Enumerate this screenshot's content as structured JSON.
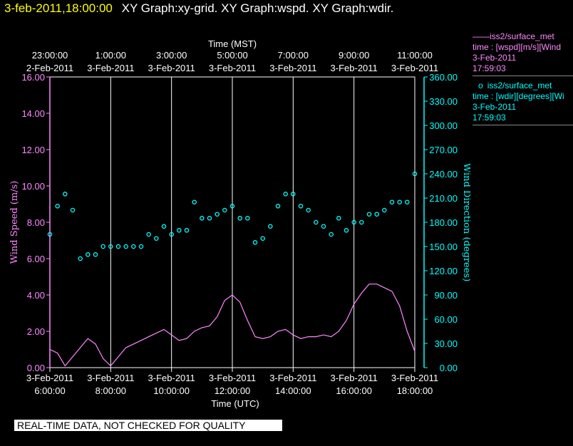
{
  "header": {
    "date": "3-feb-2011,18:00:00",
    "graphs": "XY Graph:xy-grid.  XY Graph:wspd.  XY Graph:wdir."
  },
  "legend": [
    {
      "dataset": "iss2/surface_met",
      "variable": "time : [wspd][m/s][Wind",
      "date": "3-Feb-2011",
      "time": "17:59:03",
      "color": "#ff88ff",
      "marker": "line"
    },
    {
      "dataset": "iss2/surface_met",
      "variable": "time : [wdir][degrees][Wi",
      "date": "3-Feb-2011",
      "time": "17:59:03",
      "color": "#00ffff",
      "marker": "circle"
    }
  ],
  "qc_note": "REAL-TIME DATA, NOT CHECKED FOR QUALITY",
  "chart_data": {
    "type": "line",
    "top_axis": {
      "label": "Time (MST)",
      "ticks": [
        {
          "time": "23:00:00",
          "date": "2-Feb-2011"
        },
        {
          "time": "1:00:00",
          "date": "3-Feb-2011"
        },
        {
          "time": "3:00:00",
          "date": "3-Feb-2011"
        },
        {
          "time": "5:00:00",
          "date": "3-Feb-2011"
        },
        {
          "time": "7:00:00",
          "date": "3-Feb-2011"
        },
        {
          "time": "9:00:00",
          "date": "3-Feb-2011"
        },
        {
          "time": "11:00:00",
          "date": "3-Feb-2011"
        }
      ]
    },
    "x_axis": {
      "label": "Time (UTC)",
      "range": [
        "3-Feb-2011 6:00:00",
        "3-Feb-2011 18:00:00"
      ],
      "ticks": [
        {
          "time": "6:00:00",
          "date": "3-Feb-2011"
        },
        {
          "time": "8:00:00",
          "date": "3-Feb-2011"
        },
        {
          "time": "10:00:00",
          "date": "3-Feb-2011"
        },
        {
          "time": "12:00:00",
          "date": "3-Feb-2011"
        },
        {
          "time": "14:00:00",
          "date": "3-Feb-2011"
        },
        {
          "time": "16:00:00",
          "date": "3-Feb-2011"
        },
        {
          "time": "18:00:00",
          "date": "3-Feb-2011"
        }
      ]
    },
    "y_left": {
      "label": "Wind Speed (m/s)",
      "range": [
        0,
        16
      ],
      "ticks": [
        "0.00",
        "2.00",
        "4.00",
        "6.00",
        "8.00",
        "10.00",
        "12.00",
        "14.00",
        "16.00"
      ],
      "color": "#ff88ff"
    },
    "y_right": {
      "label": "Wind Direction (degrees)",
      "range": [
        0,
        360
      ],
      "ticks": [
        "0.00",
        "30.00",
        "60.00",
        "90.00",
        "120.00",
        "150.00",
        "180.00",
        "210.00",
        "240.00",
        "270.00",
        "300.00",
        "330.00",
        "360.00"
      ],
      "color": "#00ffff"
    },
    "grid": "vertical lines at top-axis ticks",
    "series": [
      {
        "name": "wspd",
        "axis": "left",
        "style": "line",
        "color": "#ff88ff",
        "x": [
          "6:00",
          "6:15",
          "6:30",
          "6:45",
          "7:00",
          "7:15",
          "7:30",
          "7:45",
          "8:00",
          "8:15",
          "8:30",
          "8:45",
          "9:00",
          "9:15",
          "9:30",
          "9:45",
          "10:00",
          "10:15",
          "10:30",
          "10:45",
          "11:00",
          "11:15",
          "11:30",
          "11:45",
          "12:00",
          "12:15",
          "12:30",
          "12:45",
          "13:00",
          "13:15",
          "13:30",
          "13:45",
          "14:00",
          "14:15",
          "14:30",
          "14:45",
          "15:00",
          "15:15",
          "15:30",
          "15:45",
          "16:00",
          "16:15",
          "16:30",
          "16:45",
          "17:00",
          "17:15",
          "17:30",
          "17:45",
          "18:00"
        ],
        "values": [
          1.0,
          0.8,
          0.1,
          0.6,
          1.1,
          1.6,
          1.3,
          0.5,
          0.1,
          0.6,
          1.1,
          1.3,
          1.5,
          1.7,
          1.9,
          2.1,
          1.8,
          1.5,
          1.6,
          2.0,
          2.2,
          2.3,
          2.8,
          3.7,
          4.0,
          3.6,
          2.6,
          1.7,
          1.6,
          1.7,
          2.0,
          2.1,
          1.8,
          1.6,
          1.7,
          1.7,
          1.8,
          1.7,
          2.0,
          2.6,
          3.5,
          4.1,
          4.6,
          4.6,
          4.4,
          4.2,
          3.4,
          2.0,
          0.9
        ]
      },
      {
        "name": "wdir",
        "axis": "right",
        "style": "circles",
        "color": "#00ffff",
        "x": [
          "6:00",
          "6:15",
          "6:30",
          "6:45",
          "7:00",
          "7:15",
          "7:30",
          "7:45",
          "8:00",
          "8:15",
          "8:30",
          "8:45",
          "9:00",
          "9:15",
          "9:30",
          "9:45",
          "10:00",
          "10:15",
          "10:30",
          "10:45",
          "11:00",
          "11:15",
          "11:30",
          "11:45",
          "12:00",
          "12:15",
          "12:30",
          "12:45",
          "13:00",
          "13:15",
          "13:30",
          "13:45",
          "14:00",
          "14:15",
          "14:30",
          "14:45",
          "15:00",
          "15:15",
          "15:30",
          "15:45",
          "16:00",
          "16:15",
          "16:30",
          "16:45",
          "17:00",
          "17:15",
          "17:30",
          "17:45",
          "18:00"
        ],
        "values": [
          165,
          200,
          215,
          195,
          135,
          140,
          140,
          150,
          150,
          150,
          150,
          150,
          150,
          165,
          160,
          175,
          165,
          170,
          170,
          205,
          185,
          185,
          190,
          195,
          200,
          185,
          185,
          155,
          160,
          175,
          200,
          215,
          215,
          200,
          195,
          180,
          175,
          165,
          185,
          170,
          180,
          180,
          190,
          190,
          195,
          205,
          205,
          205,
          240
        ]
      }
    ]
  }
}
